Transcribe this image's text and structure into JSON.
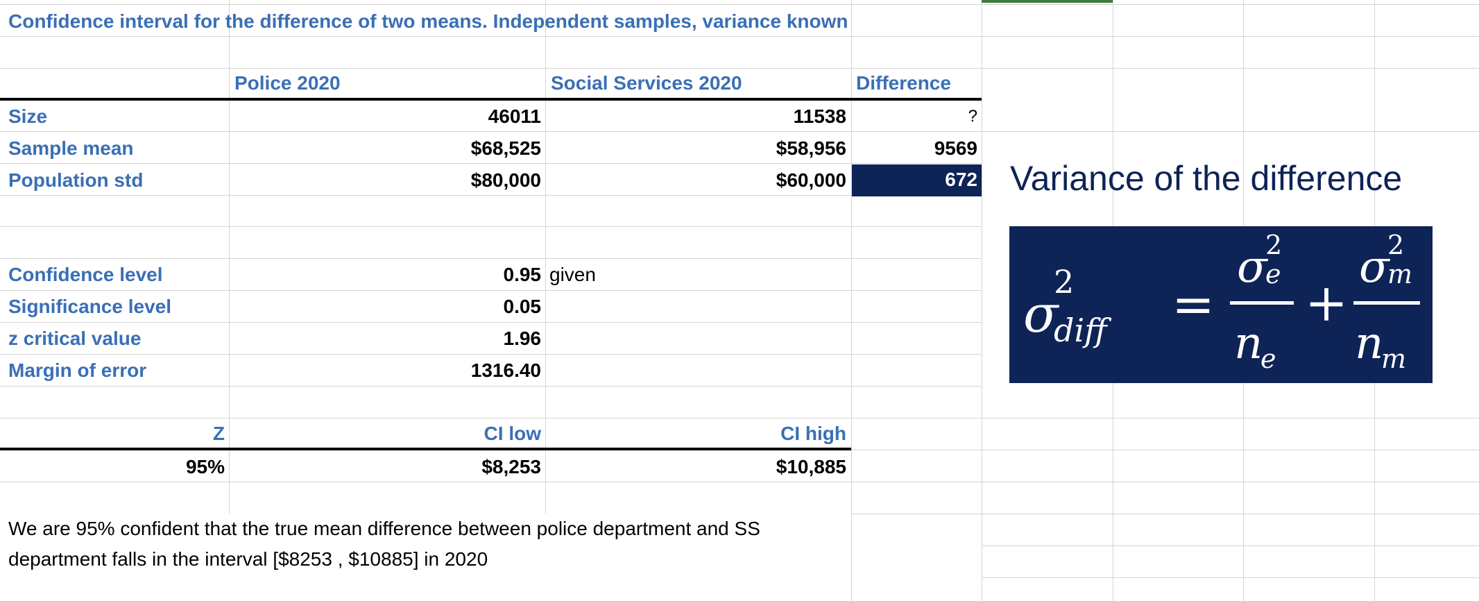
{
  "title": "Confidence interval for the difference of two means. Independent samples, variance known",
  "headers": {
    "police": "Police 2020",
    "social": "Social Services 2020",
    "difference": "Difference"
  },
  "rows": {
    "size": {
      "label": "Size",
      "police": "46011",
      "social": "11538",
      "difference": "?"
    },
    "mean": {
      "label": "Sample mean",
      "police": "$68,525",
      "social": "$58,956",
      "difference": "9569"
    },
    "std": {
      "label": "Population std",
      "police": "$80,000",
      "social": "$60,000",
      "difference": "672"
    }
  },
  "params": {
    "confidence_label": "Confidence level",
    "confidence_value": "0.95",
    "confidence_note": "given",
    "significance_label": "Significance level",
    "significance_value": "0.05",
    "zcrit_label": "z critical value",
    "zcrit_value": "1.96",
    "moe_label": "Margin of error",
    "moe_value": "1316.40"
  },
  "ci": {
    "z_header": "Z",
    "low_header": "CI low",
    "high_header": "CI high",
    "z_value": "95%",
    "low_value": "$8,253",
    "high_value": "$10,885"
  },
  "conclusion": {
    "line1": "We are 95% confident that the true mean difference between police department and SS",
    "line2": "department falls in the interval [$8253 , $10885] in 2020"
  },
  "formula": {
    "title": "Variance of the difference",
    "lhs_base": "σ",
    "lhs_sup": "2",
    "lhs_sub": "diff",
    "equals": "=",
    "plus": "+",
    "num1_base": "σ",
    "num1_sup": "2",
    "num1_sub": "e",
    "den1_base": "n",
    "den1_sub": "e",
    "num2_base": "σ",
    "num2_sup": "2",
    "num2_sub": "m",
    "den2_base": "n",
    "den2_sub": "m"
  },
  "colors": {
    "label_blue": "#3a6fb5",
    "navy": "#0e2356",
    "selection_green": "#3c7d3e",
    "gridline": "#d4d4d4"
  }
}
